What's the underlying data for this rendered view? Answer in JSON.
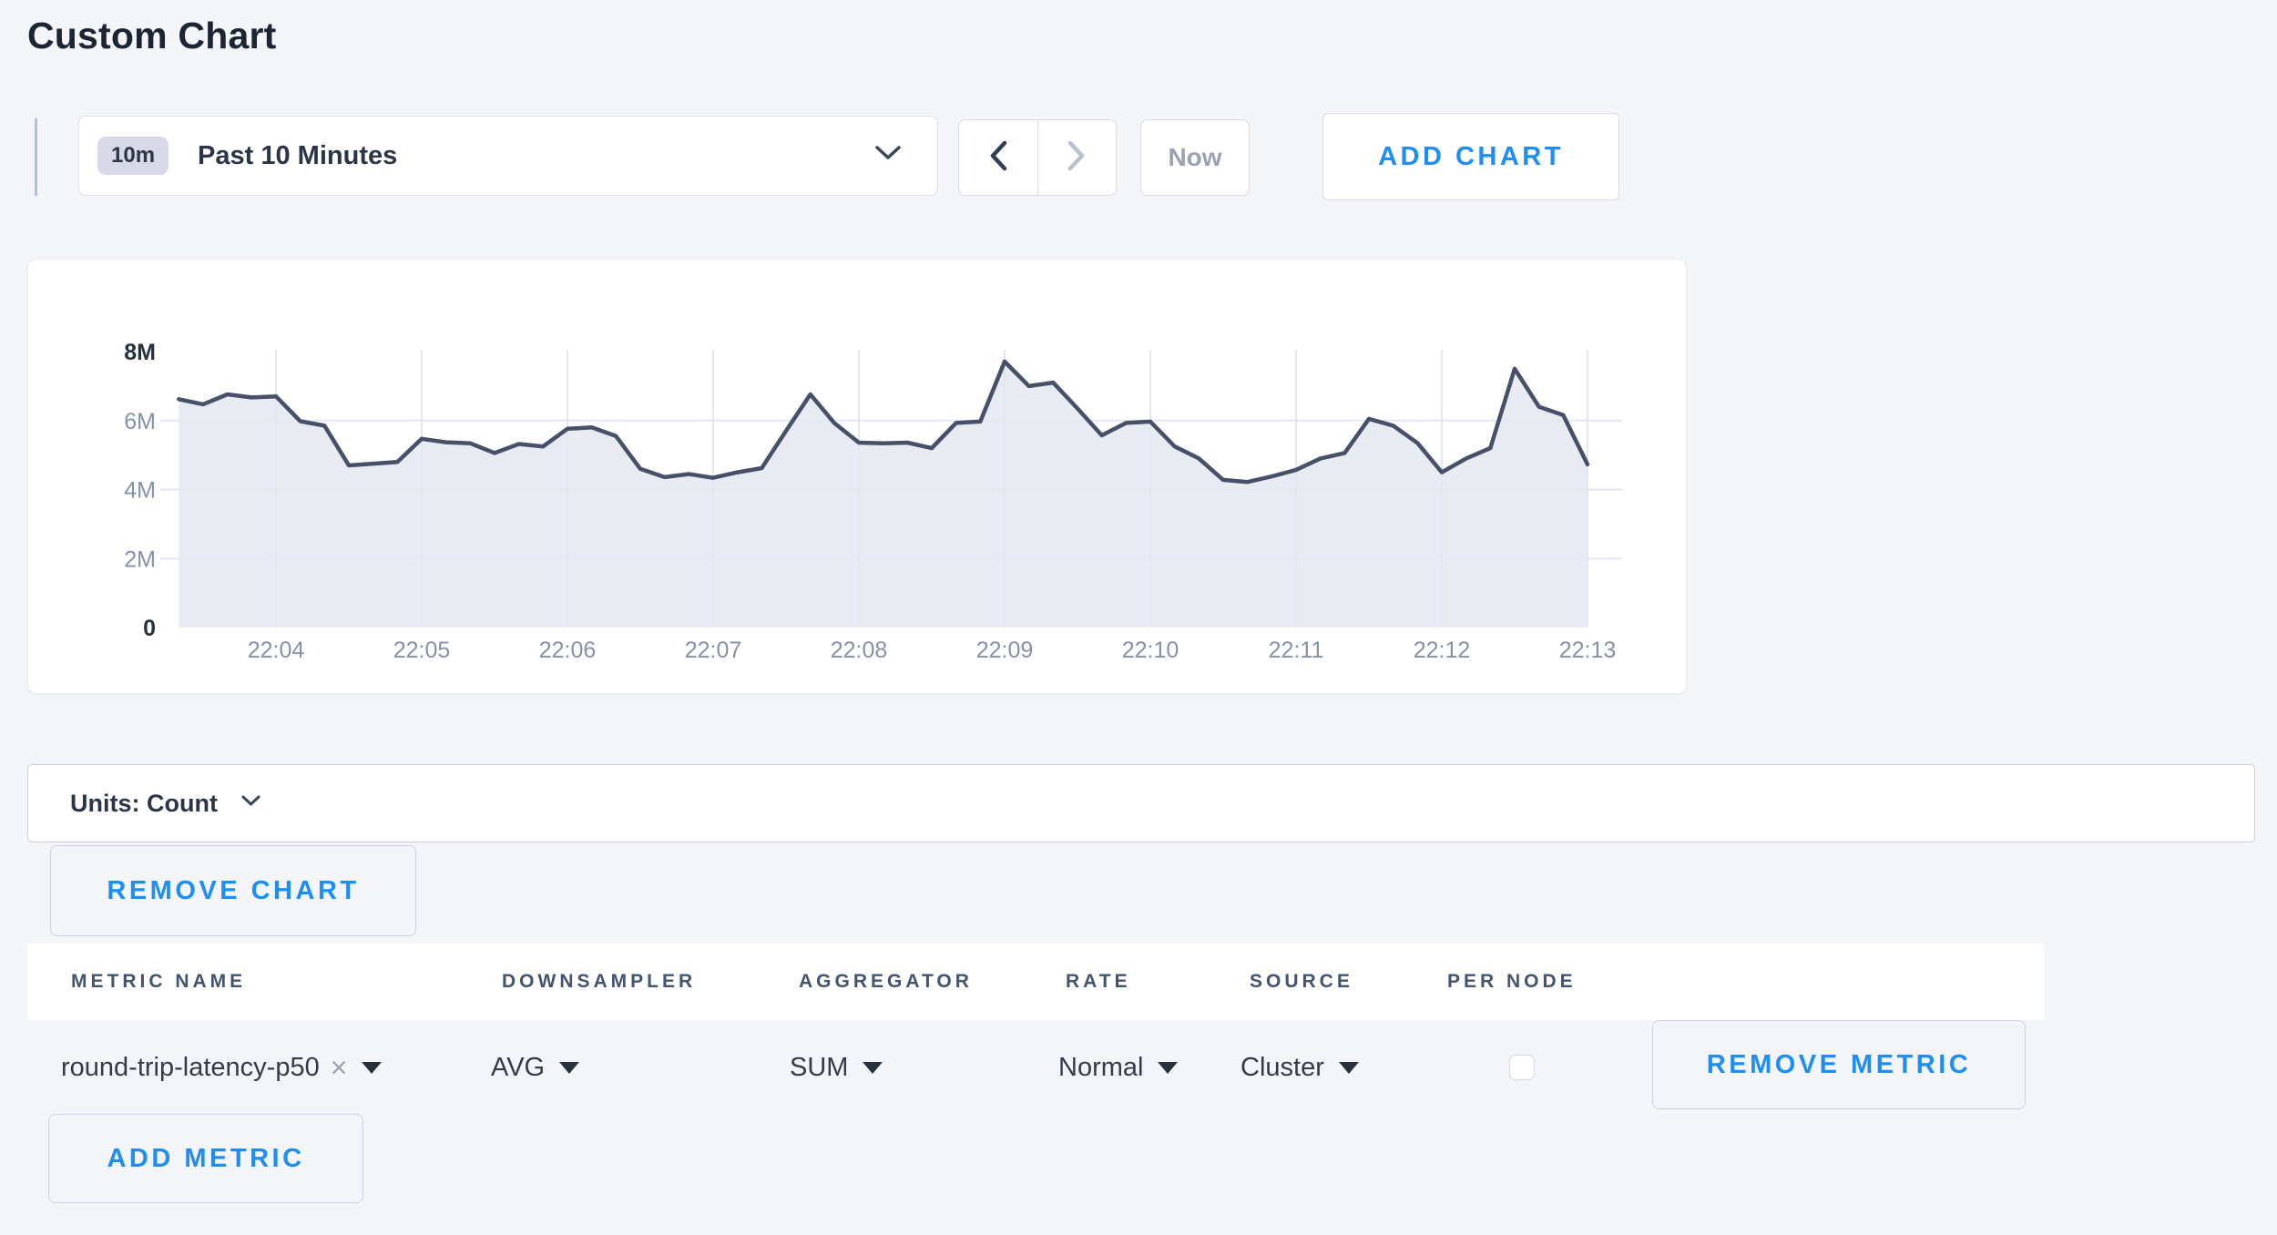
{
  "page": {
    "title": "Custom Chart"
  },
  "toolbar": {
    "range_badge": "10m",
    "range_label": "Past 10 Minutes",
    "now_label": "Now",
    "add_chart_label": "ADD CHART"
  },
  "units_bar": {
    "label": "Units: Count"
  },
  "buttons": {
    "remove_chart": "REMOVE CHART",
    "add_metric": "ADD METRIC",
    "remove_metric": "REMOVE METRIC"
  },
  "icons": {
    "close": "×"
  },
  "metrics_table": {
    "columns": [
      "METRIC NAME",
      "DOWNSAMPLER",
      "AGGREGATOR",
      "RATE",
      "SOURCE",
      "PER NODE"
    ],
    "rows": [
      {
        "metric_name": "round-trip-latency-p50",
        "downsampler": "AVG",
        "aggregator": "SUM",
        "rate": "Normal",
        "source": "Cluster",
        "per_node_checked": false
      }
    ]
  },
  "chart_data": {
    "type": "area",
    "series_name": "round-trip-latency-p50",
    "unit": "Count",
    "legend": "none",
    "grid": true,
    "ylim_millions": [
      0,
      8
    ],
    "y_tick_values_millions": [
      0,
      2,
      4,
      6,
      8
    ],
    "y_tick_labels": [
      "0",
      "2M",
      "4M",
      "6M",
      "8M"
    ],
    "x_tick_labels": [
      "22:04",
      "22:05",
      "22:06",
      "22:07",
      "22:08",
      "22:09",
      "22:10",
      "22:11",
      "22:12",
      "22:13"
    ],
    "x_times": [
      "22:03:20",
      "22:03:30",
      "22:03:40",
      "22:03:50",
      "22:04:00",
      "22:04:10",
      "22:04:20",
      "22:04:30",
      "22:04:40",
      "22:04:50",
      "22:05:00",
      "22:05:10",
      "22:05:20",
      "22:05:30",
      "22:05:40",
      "22:05:50",
      "22:06:00",
      "22:06:10",
      "22:06:20",
      "22:06:30",
      "22:06:40",
      "22:06:50",
      "22:07:00",
      "22:07:10",
      "22:07:20",
      "22:07:30",
      "22:07:40",
      "22:07:50",
      "22:08:00",
      "22:08:10",
      "22:08:20",
      "22:08:30",
      "22:08:40",
      "22:08:50",
      "22:09:00",
      "22:09:10",
      "22:09:20",
      "22:09:30",
      "22:09:40",
      "22:09:50",
      "22:10:00",
      "22:10:10",
      "22:10:20",
      "22:10:30",
      "22:10:40",
      "22:10:50",
      "22:11:00",
      "22:11:10",
      "22:11:20",
      "22:11:30",
      "22:11:40",
      "22:11:50",
      "22:12:00",
      "22:12:10",
      "22:12:20",
      "22:12:30",
      "22:12:40",
      "22:12:50",
      "22:13:00"
    ],
    "values_millions": [
      6.62,
      6.47,
      6.76,
      6.67,
      6.7,
      5.98,
      5.85,
      4.7,
      4.75,
      4.8,
      5.47,
      5.37,
      5.34,
      5.06,
      5.32,
      5.25,
      5.76,
      5.8,
      5.55,
      4.6,
      4.36,
      4.45,
      4.34,
      4.5,
      4.62,
      5.7,
      6.76,
      5.92,
      5.36,
      5.34,
      5.36,
      5.2,
      5.93,
      5.97,
      7.71,
      7.0,
      7.1,
      6.35,
      5.57,
      5.93,
      5.97,
      5.25,
      4.9,
      4.28,
      4.22,
      4.38,
      4.57,
      4.9,
      5.06,
      6.05,
      5.85,
      5.35,
      4.5,
      4.9,
      5.2,
      7.5,
      6.4,
      6.16,
      4.73
    ],
    "line_color": "#475068",
    "fill_color": "#e9ebf2",
    "grid_color": "#e3e7f1",
    "axis_label_color": "#8691a6",
    "axis_label_strong_color": "#28303f"
  }
}
